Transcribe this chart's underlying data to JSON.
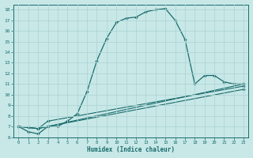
{
  "xlabel": "Humidex (Indice chaleur)",
  "ylabel": "",
  "background_color": "#c8e8e8",
  "grid_color": "#b0d4d4",
  "line_color": "#1a6b6b",
  "xlim": [
    -0.5,
    23.5
  ],
  "ylim": [
    6,
    18.5
  ],
  "yticks": [
    6,
    7,
    8,
    9,
    10,
    11,
    12,
    13,
    14,
    15,
    16,
    17,
    18
  ],
  "xticks": [
    0,
    1,
    2,
    3,
    4,
    5,
    6,
    7,
    8,
    9,
    10,
    11,
    12,
    13,
    14,
    15,
    16,
    17,
    18,
    19,
    20,
    21,
    22,
    23
  ],
  "curve1_x": [
    0,
    1,
    2,
    3,
    4,
    5,
    6,
    7,
    8,
    9,
    10,
    11,
    12,
    13,
    14,
    15,
    16,
    17,
    18,
    19,
    20,
    21,
    22,
    23
  ],
  "curve1_y": [
    7.0,
    6.5,
    6.3,
    7.0,
    7.0,
    7.5,
    8.2,
    10.3,
    13.2,
    15.3,
    16.8,
    17.2,
    17.3,
    17.8,
    18.0,
    18.1,
    17.0,
    15.2,
    11.0,
    11.8,
    11.8,
    11.2,
    11.0,
    11.0
  ],
  "curve2_x": [
    0,
    1,
    2,
    3,
    23
  ],
  "curve2_y": [
    7.0,
    6.9,
    6.8,
    7.0,
    11.0
  ],
  "curve3_x": [
    0,
    1,
    2,
    3,
    23
  ],
  "curve3_y": [
    7.0,
    6.9,
    6.8,
    7.0,
    10.5
  ],
  "curve4_x": [
    0,
    1,
    2,
    3,
    23
  ],
  "curve4_y": [
    7.0,
    6.9,
    6.8,
    7.5,
    10.8
  ]
}
